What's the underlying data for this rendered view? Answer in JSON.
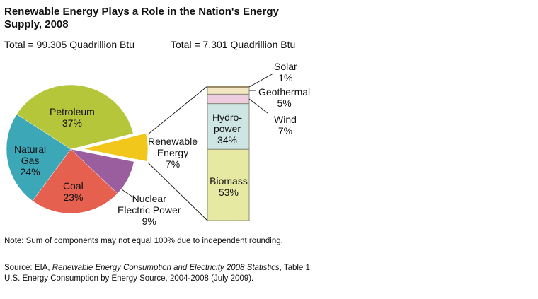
{
  "chart_data": {
    "type": "pie",
    "title": "Renewable Energy Plays a Role in the Nation's Energy Supply, 2008",
    "pie": {
      "total_label": "Total = 99.305 Quadrillion Btu",
      "slices": [
        {
          "name": "Petroleum",
          "value": 37,
          "label": "37%",
          "color": "#b6c63b"
        },
        {
          "name": "Natural Gas",
          "value": 24,
          "label": "24%",
          "color": "#3ba7b7"
        },
        {
          "name": "Coal",
          "value": 23,
          "label": "23%",
          "color": "#e5604f"
        },
        {
          "name": "Nuclear Electric Power",
          "value": 9,
          "label": "9%",
          "color": "#9a5e9f"
        },
        {
          "name": "Renewable Energy",
          "value": 7,
          "label": "7%",
          "color": "#f2c71b",
          "exploded": true
        }
      ]
    },
    "bar": {
      "type": "stacked-bar",
      "total_label": "Total = 7.301 Quadrillion Btu",
      "segments": [
        {
          "name": "Solar",
          "value": 1,
          "label": "1%",
          "color": "#b5894c"
        },
        {
          "name": "Geothermal",
          "value": 5,
          "label": "5%",
          "color": "#f3e6c2"
        },
        {
          "name": "Wind",
          "value": 7,
          "label": "7%",
          "color": "#efcde0"
        },
        {
          "name": "Hydro-power",
          "value": 34,
          "label": "34%",
          "color": "#cee6e3"
        },
        {
          "name": "Biomass",
          "value": 53,
          "label": "53%",
          "color": "#e5e9a1"
        }
      ]
    },
    "note": "Note: Sum of components may not equal 100% due to independent rounding.",
    "source_prefix": "Source: EIA, ",
    "source_italic": "Renewable Energy Consumption and Electricity 2008 Statistics",
    "source_suffix": ", Table 1: U.S. Energy Consumption by Energy Source, 2004-2008 (July 2009)."
  },
  "labels": {
    "petroleum": "Petroleum",
    "natural_gas_1": "Natural",
    "natural_gas_2": "Gas",
    "coal": "Coal",
    "nuclear_1": "Nuclear",
    "nuclear_2": "Electric Power",
    "renewable_1": "Renewable",
    "renewable_2": "Energy",
    "hydro_1": "Hydro-",
    "hydro_2": "power"
  }
}
